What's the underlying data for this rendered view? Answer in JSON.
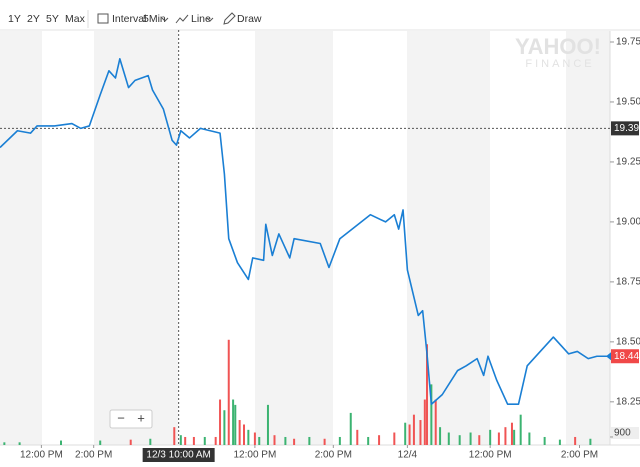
{
  "toolbar": {
    "ranges": [
      "1Y",
      "2Y",
      "5Y",
      "Max"
    ],
    "interval_label": "Interval",
    "interval": "5Min",
    "chart_style": "Line",
    "draw": "Draw"
  },
  "watermark": [
    "YAHOO!",
    "FINANCE"
  ],
  "zoom": [
    "−",
    "+"
  ],
  "chart_data": {
    "type": "line",
    "x": [
      0,
      8,
      14,
      17,
      25,
      33,
      37,
      41,
      46,
      50,
      53,
      55,
      59,
      62,
      68,
      70,
      75,
      79,
      81,
      83,
      87,
      92,
      101,
      103,
      105,
      109,
      114,
      116,
      121,
      122,
      125,
      128,
      133,
      135,
      147,
      151,
      156,
      163,
      170,
      177,
      181,
      183,
      185,
      187,
      192,
      194,
      196,
      198,
      203,
      210,
      214,
      219,
      222,
      224,
      228,
      233,
      238,
      242,
      247,
      254,
      261,
      265,
      270,
      274,
      279
    ],
    "series": [
      {
        "color": "#1a7fd4",
        "values": [
          19.31,
          19.38,
          19.37,
          19.4,
          19.4,
          19.41,
          19.39,
          19.4,
          19.53,
          19.63,
          19.6,
          19.68,
          19.56,
          19.59,
          19.61,
          19.55,
          19.47,
          19.34,
          19.32,
          19.38,
          19.35,
          19.39,
          19.37,
          19.2,
          18.93,
          18.83,
          18.76,
          18.85,
          18.84,
          18.99,
          18.86,
          18.95,
          18.85,
          18.93,
          18.91,
          18.81,
          18.93,
          18.98,
          19.03,
          19.0,
          19.03,
          18.97,
          19.05,
          18.8,
          18.61,
          18.63,
          18.45,
          18.24,
          18.28,
          18.38,
          18.4,
          18.43,
          18.36,
          18.44,
          18.34,
          18.24,
          18.24,
          18.4,
          18.45,
          18.52,
          18.45,
          18.46,
          18.43,
          18.44,
          18.44
        ]
      }
    ],
    "xlim": [
      0,
      280
    ],
    "xticks": [
      {
        "value": 19,
        "label": "12:00 PM"
      },
      {
        "value": 43,
        "label": "2:00 PM"
      },
      {
        "value": 117,
        "label": "12:00 PM"
      },
      {
        "value": 153,
        "label": "2:00 PM"
      },
      {
        "value": 187,
        "label": "12/4"
      },
      {
        "value": 225,
        "label": "12:00 PM"
      },
      {
        "value": 266,
        "label": "2:00 PM"
      }
    ],
    "ylim": [
      18.07,
      19.8
    ],
    "yticks": [
      19.75,
      {
        "value": 19.5,
        "label": "19.50"
      },
      19.25,
      {
        "value": 19,
        "label": "19.00"
      },
      18.75,
      {
        "value": 18.5,
        "label": "18.50"
      },
      18.25
    ],
    "crosshair": {
      "x": {
        "value": 82,
        "label": "12/3 10:00 AM"
      },
      "y": 19.39
    },
    "last_price": 18.44,
    "volume": {
      "x": [
        2,
        9,
        28,
        46,
        60,
        69,
        80,
        83,
        85,
        89,
        94,
        99,
        101,
        103,
        105,
        107,
        108,
        110,
        112,
        114,
        117,
        119,
        123,
        126,
        131,
        135,
        142,
        149,
        156,
        161,
        164,
        169,
        174,
        181,
        186,
        188,
        190,
        193,
        195,
        196,
        198,
        200,
        202,
        206,
        211,
        216,
        220,
        225,
        229,
        232,
        235,
        236,
        239,
        243,
        250,
        257,
        264,
        271
      ],
      "values": [
        300,
        300,
        500,
        500,
        600,
        700,
        2000,
        1100,
        900,
        900,
        900,
        900,
        5100,
        3900,
        11800,
        5100,
        4500,
        2800,
        2300,
        1700,
        1400,
        900,
        4500,
        1100,
        900,
        700,
        900,
        700,
        900,
        3600,
        1700,
        900,
        1100,
        1400,
        2500,
        2300,
        3400,
        2800,
        5100,
        11300,
        6800,
        5100,
        2000,
        1400,
        1100,
        1400,
        1100,
        1700,
        1400,
        2000,
        2500,
        1700,
        3400,
        1400,
        900,
        600,
        900,
        700
      ],
      "colors": [
        "#3bb371",
        "#3bb371",
        "#3bb371",
        "#3bb371",
        "#f05454",
        "#3bb371",
        "#f05454",
        "#3bb371",
        "#f05454",
        "#f05454",
        "#3bb371",
        "#f05454",
        "#f05454",
        "#3bb371",
        "#f05454",
        "#3bb371",
        "#3bb371",
        "#f05454",
        "#f05454",
        "#3bb371",
        "#f05454",
        "#3bb371",
        "#3bb371",
        "#f05454",
        "#3bb371",
        "#f05454",
        "#3bb371",
        "#f05454",
        "#3bb371",
        "#3bb371",
        "#f05454",
        "#3bb371",
        "#f05454",
        "#f05454",
        "#3bb371",
        "#f05454",
        "#f05454",
        "#f05454",
        "#f05454",
        "#f05454",
        "#3bb371",
        "#f05454",
        "#3bb371",
        "#3bb371",
        "#3bb371",
        "#3bb371",
        "#f05454",
        "#3bb371",
        "#f05454",
        "#f05454",
        "#f05454",
        "#3bb371",
        "#3bb371",
        "#3bb371",
        "#3bb371",
        "#3bb371",
        "#f05454",
        "#3bb371"
      ],
      "ylim": [
        0,
        12000
      ],
      "yticks": [
        900
      ]
    }
  }
}
